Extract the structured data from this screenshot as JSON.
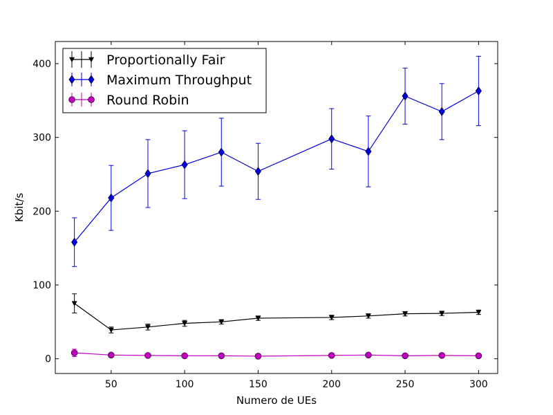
{
  "chart_data": {
    "type": "line",
    "title": "",
    "xlabel": "Numero de UEs",
    "ylabel": "Kbit/s",
    "xlim": [
      12,
      313
    ],
    "ylim": [
      -20,
      430
    ],
    "xticks": [
      50,
      100,
      150,
      200,
      250,
      300
    ],
    "yticks": [
      0,
      100,
      200,
      300,
      400
    ],
    "x": [
      25,
      50,
      75,
      100,
      125,
      150,
      200,
      225,
      250,
      275,
      300
    ],
    "grid": false,
    "legend": "top-left",
    "series": [
      {
        "name": "Proportionally Fair",
        "color": "#000000",
        "marker": "triangle-down",
        "values": [
          75,
          39,
          43,
          48,
          50,
          55,
          56,
          58,
          61,
          61.5,
          63
        ],
        "errors": [
          13,
          4,
          4,
          4,
          3,
          3,
          3,
          3,
          3,
          3,
          3
        ]
      },
      {
        "name": "Maximum Throughput",
        "color": "#0000dd",
        "marker": "diamond",
        "values": [
          158,
          218,
          251,
          263,
          280,
          254,
          298,
          281,
          356,
          335,
          363
        ],
        "errors": [
          33,
          44,
          46,
          46,
          46,
          38,
          41,
          48,
          38,
          38,
          47
        ]
      },
      {
        "name": "Round Robin",
        "color": "#bf00bf",
        "marker": "circle",
        "values": [
          8,
          5,
          4.5,
          4,
          4,
          3.5,
          4.5,
          5,
          4,
          4.5,
          4
        ],
        "errors": [
          5,
          1,
          1,
          1,
          1,
          1,
          1,
          1,
          1,
          1,
          1
        ]
      }
    ]
  }
}
